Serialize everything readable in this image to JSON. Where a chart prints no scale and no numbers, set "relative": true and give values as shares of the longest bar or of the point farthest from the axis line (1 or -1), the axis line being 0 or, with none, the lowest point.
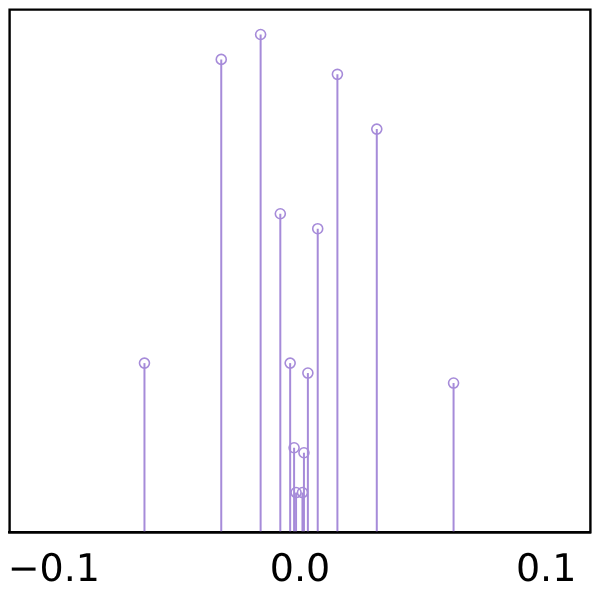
{
  "chart_data": {
    "type": "lollipop",
    "relative": true,
    "x": [
      -0.0632,
      -0.032,
      -0.016,
      -0.008,
      -0.004,
      -0.0024,
      -0.0016,
      -0.001,
      -0.0005,
      0.0,
      0.0005,
      0.001,
      0.0016,
      0.0032,
      0.0072,
      0.0152,
      0.0312,
      0.0624
    ],
    "series": [
      {
        "color": "#a68bd9",
        "values": [
          0.34,
          0.95,
          1,
          0.64,
          0.34,
          0.17,
          0.08,
          null,
          null,
          null,
          null,
          0.08,
          0.16,
          0.32,
          0.61,
          0.92,
          0.81,
          0.3
        ]
      }
    ],
    "xlim": [
      -0.118,
      0.118
    ],
    "xticks": [
      {
        "value": -0.1,
        "label": "−0.1"
      },
      {
        "value": 0,
        "label": "0.0"
      },
      {
        "value": 0.1,
        "label": "0.1"
      }
    ],
    "marker": "circle",
    "grid": false,
    "legend": false
  }
}
